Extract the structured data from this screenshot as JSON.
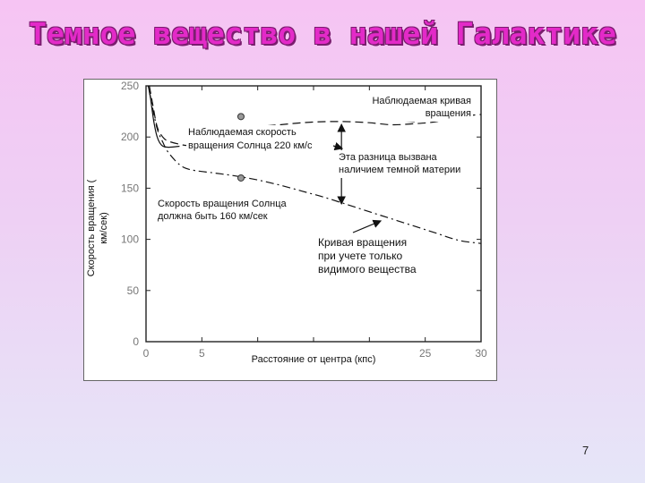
{
  "slide": {
    "title": "Темное вещество в нашей Галактике",
    "page_number": "7"
  },
  "chart_data": {
    "type": "line",
    "xlabel": "Расстояние от центра (кпс)",
    "ylabel_lines": [
      "Скорость вращения (",
      "км/сек)"
    ],
    "xlim": [
      0,
      30
    ],
    "ylim": [
      0,
      250
    ],
    "x_ticks": [
      0,
      5,
      10,
      15,
      20,
      25,
      30
    ],
    "x_tick_labels": [
      "0",
      "5",
      "",
      "",
      "",
      "25",
      "30"
    ],
    "y_ticks": [
      0,
      50,
      100,
      150,
      200,
      250
    ],
    "y_tick_labels": [
      "0",
      "50",
      "100",
      "150",
      "200",
      "250"
    ],
    "series": [
      {
        "role": "observed",
        "style": "dashed",
        "x": [
          0.3,
          0.6,
          1,
          1.5,
          2,
          3,
          4,
          6,
          8,
          10,
          12,
          14,
          16,
          18,
          20,
          22,
          24,
          26,
          28,
          30
        ],
        "y": [
          250,
          232,
          210,
          200,
          196,
          193,
          192,
          198,
          206,
          210,
          212,
          214,
          215,
          215,
          214,
          212,
          213,
          215,
          220,
          222
        ]
      },
      {
        "role": "visible",
        "style": "dash-dot",
        "x": [
          0.3,
          0.6,
          1,
          1.5,
          2,
          3,
          4,
          6,
          8,
          10,
          12,
          14,
          16,
          18,
          20,
          22,
          24,
          26,
          28,
          30
        ],
        "y": [
          245,
          228,
          208,
          195,
          185,
          173,
          168,
          165,
          162,
          158,
          153,
          147,
          141,
          134,
          127,
          120,
          113,
          106,
          99,
          96
        ]
      },
      {
        "role": "inner-peak",
        "style": "solid",
        "x": [
          0.2,
          0.4,
          0.7,
          1.0,
          1.4,
          2.0,
          3.0
        ],
        "y": [
          250,
          238,
          215,
          200,
          192,
          190,
          191
        ]
      }
    ],
    "markers": [
      {
        "name": "sun-observed",
        "x": 8.5,
        "y": 220
      },
      {
        "name": "sun-expected",
        "x": 8.5,
        "y": 160
      }
    ],
    "difference_arrow": {
      "x": 17.5,
      "y_top": 214,
      "y_bottom": 133
    },
    "annotations": {
      "observed_curve": [
        "Наблюдаемая кривая",
        "вращения"
      ],
      "sun_observed": [
        "Наблюдаемая скорость",
        "вращения Солнца 220 км/с"
      ],
      "difference": [
        "Эта разница вызвана",
        "наличием темной материи"
      ],
      "sun_expected": [
        "Скорость вращения Солнца",
        "должна быть 160 км/сек"
      ],
      "visible_curve": [
        "Кривая вращения",
        "при учете только",
        "видимого вещества"
      ]
    },
    "colors": {
      "curve": "#111111",
      "axis": "#777777",
      "axis_frame": "#222222"
    }
  }
}
